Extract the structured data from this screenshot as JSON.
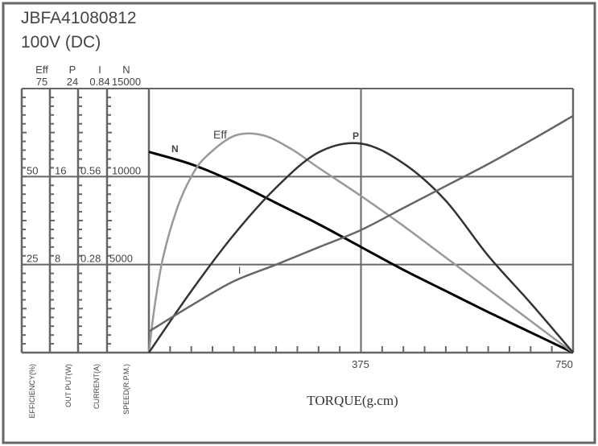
{
  "header": {
    "model": "JBFA41080812",
    "voltage": "100V (DC)"
  },
  "chart_data": {
    "type": "line",
    "xlabel": "TORQUE(g.cm)",
    "xlim": [
      0,
      750
    ],
    "x_ticks_labeled": [
      "375",
      "750"
    ],
    "x_minor_tick_step": 37.5,
    "grid": true,
    "y_axes": [
      {
        "key": "Eff",
        "label": "EFFICIENCY(%)",
        "max": 75,
        "ticks": [
          "75",
          "50",
          "25"
        ],
        "tick_values": [
          75,
          50,
          25
        ]
      },
      {
        "key": "P",
        "label": "OUT  PUT(W)",
        "max": 24,
        "ticks": [
          "24",
          "16",
          "8"
        ],
        "tick_values": [
          24,
          16,
          8
        ]
      },
      {
        "key": "I",
        "label": "CURRENT(A)",
        "max": 0.84,
        "ticks": [
          "0.84",
          "0.56",
          "0.28"
        ],
        "tick_values": [
          0.84,
          0.56,
          0.28
        ]
      },
      {
        "key": "N",
        "label": "SPEED(R.P.M.)",
        "max": 15000,
        "ticks": [
          "15000",
          "10000",
          "5000"
        ],
        "tick_values": [
          15000,
          10000,
          5000
        ]
      }
    ],
    "series": [
      {
        "name": "N",
        "axis": "N",
        "color": "#000000",
        "x": [
          0,
          75,
          150,
          225,
          300,
          375,
          450,
          525,
          600,
          675,
          750
        ],
        "y": [
          11400,
          10700,
          9700,
          8500,
          7300,
          6000,
          4700,
          3500,
          2300,
          1150,
          0
        ]
      },
      {
        "name": "Eff",
        "axis": "Eff",
        "color": "#999999",
        "x": [
          0,
          10,
          25,
          50,
          75,
          100,
          150,
          200,
          250,
          300,
          375,
          450,
          525,
          600,
          675,
          750
        ],
        "y": [
          0,
          13,
          27,
          41,
          50,
          55.5,
          61.5,
          61.8,
          58,
          52.5,
          44.5,
          36,
          27,
          18,
          9,
          0
        ]
      },
      {
        "name": "P",
        "axis": "P",
        "color": "#333333",
        "x": [
          0,
          75,
          150,
          225,
          300,
          375,
          450,
          525,
          600,
          675,
          750
        ],
        "y": [
          0,
          5.6,
          10.7,
          15.0,
          18.2,
          19.0,
          17.2,
          13.8,
          8.8,
          4.5,
          0
        ]
      },
      {
        "name": "I",
        "axis": "I",
        "color": "#666666",
        "x": [
          0,
          75,
          150,
          225,
          300,
          375,
          450,
          525,
          600,
          675,
          750
        ],
        "y": [
          0.067,
          0.15,
          0.227,
          0.28,
          0.335,
          0.39,
          0.46,
          0.53,
          0.6,
          0.675,
          0.753
        ]
      }
    ]
  }
}
